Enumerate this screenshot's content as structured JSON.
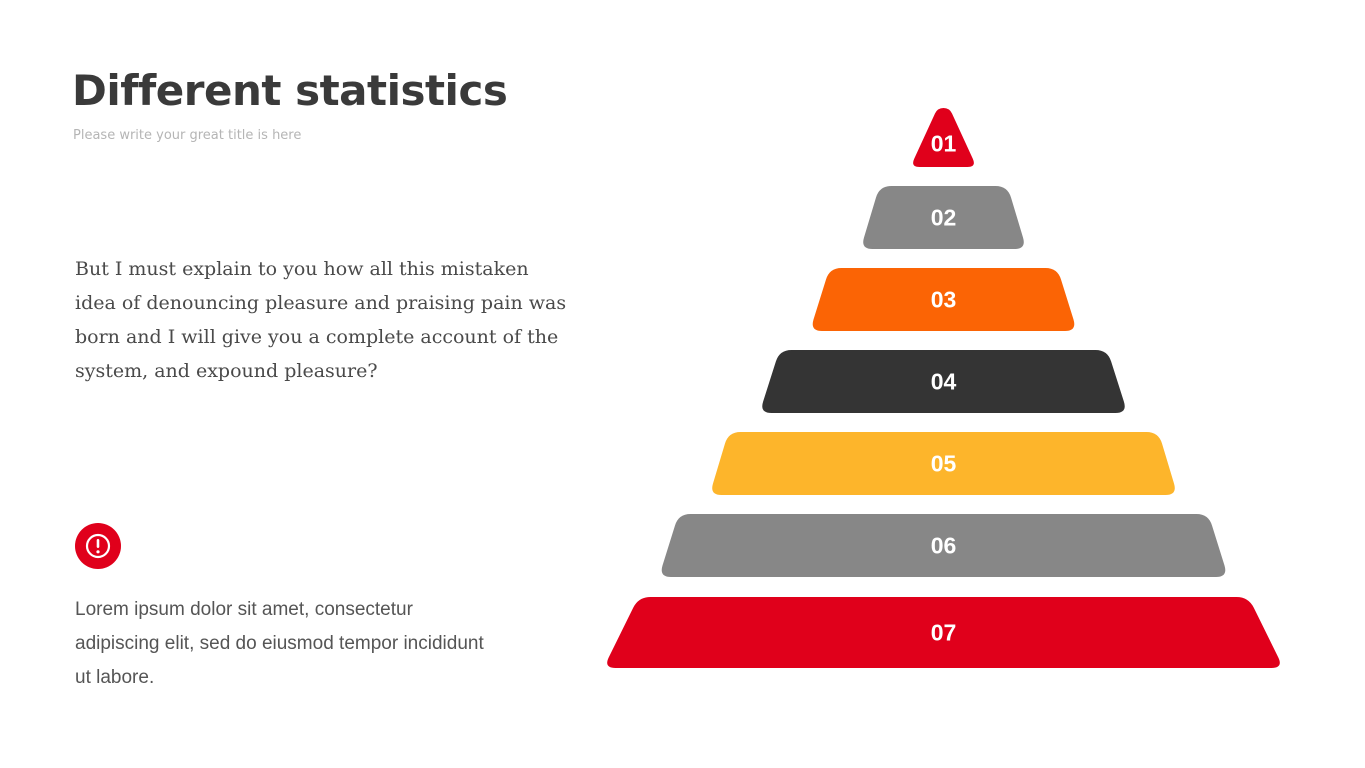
{
  "slide": {
    "title": "Different statistics",
    "subtitle": "Please write your great title is here",
    "body": "But I must explain to you how all this mistaken idea of denouncing pleasure and praising pain was born and I will give you a complete account of the system, and expound pleasure?",
    "note": "Lorem ipsum dolor sit amet, consectetur adipiscing elit, sed do eiusmod tempor incididunt ut labore.",
    "note_icon": "exclamation-circle-icon",
    "accent_color": "#e0001b"
  },
  "pyramid": {
    "layers": [
      {
        "label": "01",
        "color": "#e0001b"
      },
      {
        "label": "02",
        "color": "#878787"
      },
      {
        "label": "03",
        "color": "#fb6405"
      },
      {
        "label": "04",
        "color": "#343434"
      },
      {
        "label": "05",
        "color": "#fdb52b"
      },
      {
        "label": "06",
        "color": "#878787"
      },
      {
        "label": "07",
        "color": "#e0001b"
      }
    ]
  }
}
